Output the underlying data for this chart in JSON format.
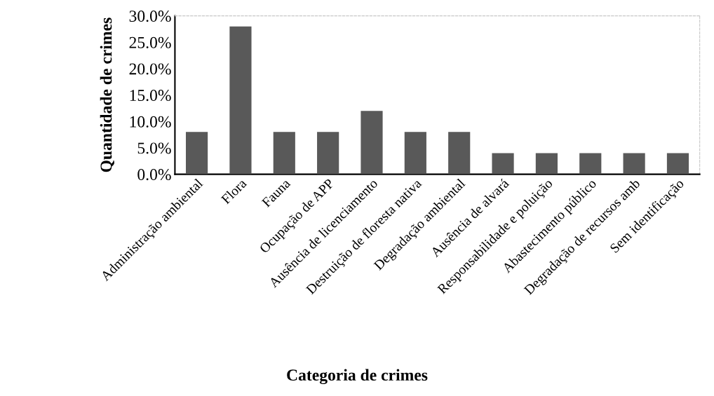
{
  "chart_data": {
    "type": "bar",
    "xlabel": "Categoria de crimes",
    "ylabel": "Quantidade de crimes",
    "categories": [
      "Administração ambiental",
      "Flora",
      "Fauna",
      "Ocupação de APP",
      "Ausência de licenciamento",
      "Destruição de floresta nativa",
      "Degradação ambiental",
      "Ausência de alvará",
      "Responsabilidade e poluição",
      "Abastecimento público",
      "Degradação de recursos amb",
      "Sem identificação"
    ],
    "values": [
      8,
      28,
      8,
      8,
      12,
      8,
      8,
      4,
      4,
      4,
      4,
      4
    ],
    "color": "#595959",
    "ylim": [
      0,
      30
    ],
    "yticks": [
      {
        "value": 0,
        "label": "0.0%"
      },
      {
        "value": 5,
        "label": "5.0%"
      },
      {
        "value": 10,
        "label": "10.0%"
      },
      {
        "value": 15,
        "label": "15.0%"
      },
      {
        "value": 20,
        "label": "20.0%"
      },
      {
        "value": 25,
        "label": "25.0%"
      },
      {
        "value": 30,
        "label": "30.0%"
      }
    ],
    "grid": false
  }
}
